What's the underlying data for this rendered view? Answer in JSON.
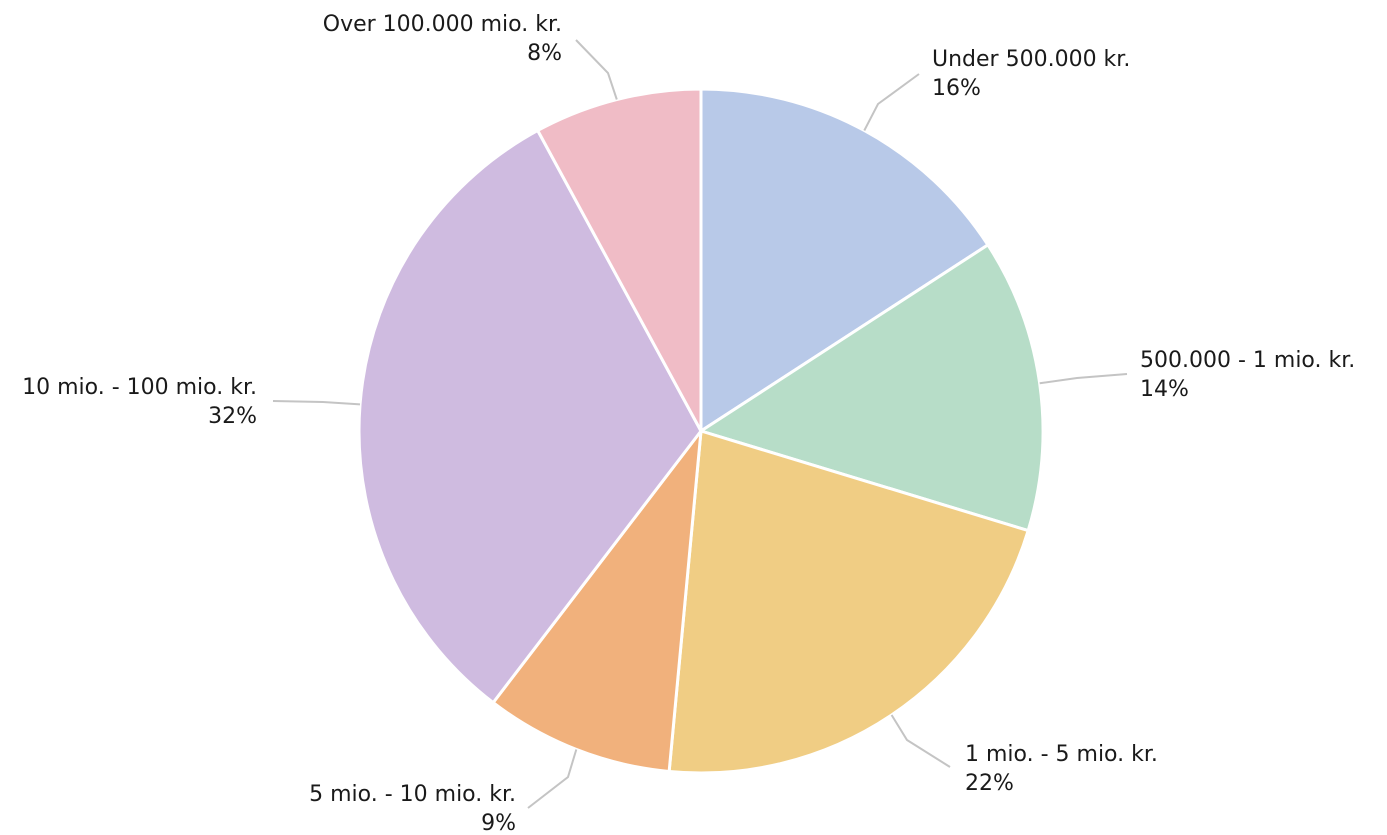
{
  "chart_data": {
    "type": "pie",
    "start_angle_deg": 90,
    "direction": "clockwise",
    "slices": [
      {
        "label": "Under 500.000 kr.",
        "value": 16,
        "pct_label": "16%",
        "color": "#b8c9e8"
      },
      {
        "label": "500.000 - 1 mio. kr.",
        "value": 14,
        "pct_label": "14%",
        "color": "#b7ddc8"
      },
      {
        "label": "1 mio. - 5 mio. kr.",
        "value": 22,
        "pct_label": "22%",
        "color": "#f0cd84"
      },
      {
        "label": "5 mio. - 10 mio. kr.",
        "value": 9,
        "pct_label": "9%",
        "color": "#f1b17c"
      },
      {
        "label": "10 mio. - 100 mio. kr.",
        "value": 32,
        "pct_label": "32%",
        "color": "#cfbbe0"
      },
      {
        "label": "Over 100.000 mio. kr.",
        "value": 8,
        "pct_label": "8%",
        "color": "#f0bcc6"
      }
    ]
  }
}
